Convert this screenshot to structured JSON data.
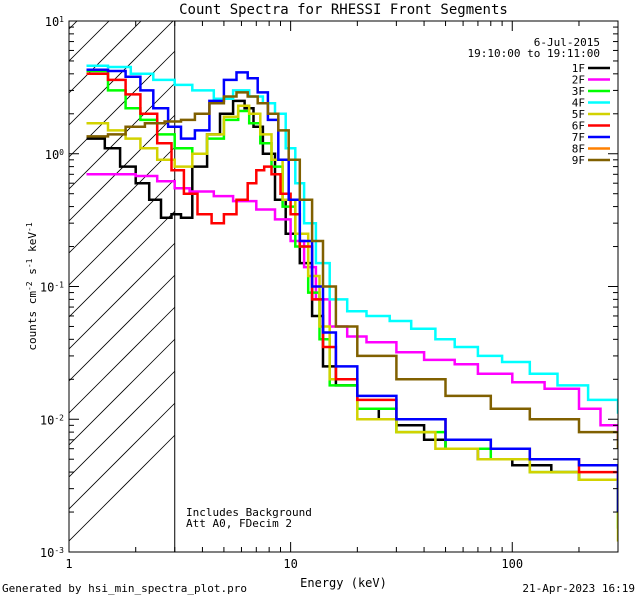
{
  "chart_data": {
    "type": "line",
    "title": "Count Spectra for RHESSI Front Segments",
    "xlabel": "Energy (keV)",
    "ylabel": "counts cm",
    "ylabel_units": {
      "cm_exp": "-2",
      "s": " s",
      "s_exp": "-1",
      "kev": " keV",
      "kev_exp": "-1"
    },
    "xscale": "log",
    "yscale": "log",
    "xlim": [
      1,
      300
    ],
    "ylim": [
      0.001,
      10
    ],
    "x_ticks": [
      {
        "v": 1,
        "label": "1"
      },
      {
        "v": 10,
        "label": "10"
      },
      {
        "v": 100,
        "label": "100"
      }
    ],
    "y_ticks": [
      {
        "v": 10,
        "base": "10",
        "exp": "1"
      },
      {
        "v": 1,
        "base": "10",
        "exp": "0"
      },
      {
        "v": 0.1,
        "base": "10",
        "exp": "-1"
      },
      {
        "v": 0.01,
        "base": "10",
        "exp": "-2"
      },
      {
        "v": 0.001,
        "base": "10",
        "exp": "-3"
      }
    ],
    "date": "6-Jul-2015",
    "time_range": "19:10:00 to 19:11:00",
    "annotations": [
      "Includes Background",
      "Att A0, FDecim 2"
    ],
    "shaded_below_kev": 3,
    "legend_position": "top-right",
    "series": [
      {
        "name": "1F",
        "color": "#000000",
        "points": [
          [
            1.2,
            1.3
          ],
          [
            1.45,
            1.1
          ],
          [
            1.7,
            0.8
          ],
          [
            2.0,
            0.6
          ],
          [
            2.3,
            0.45
          ],
          [
            2.6,
            0.33
          ],
          [
            2.9,
            0.35
          ],
          [
            3.2,
            0.33
          ],
          [
            3.6,
            0.8
          ],
          [
            4.2,
            1.4
          ],
          [
            4.8,
            2.0
          ],
          [
            5.5,
            2.5
          ],
          [
            6.2,
            2.2
          ],
          [
            6.8,
            1.6
          ],
          [
            7.5,
            1.0
          ],
          [
            8.5,
            0.45
          ],
          [
            9.5,
            0.25
          ],
          [
            11,
            0.15
          ],
          [
            12.5,
            0.06
          ],
          [
            14,
            0.025
          ],
          [
            16,
            0.018
          ],
          [
            20,
            0.012
          ],
          [
            25,
            0.01
          ],
          [
            30,
            0.009
          ],
          [
            40,
            0.007
          ],
          [
            50,
            0.006
          ],
          [
            70,
            0.005
          ],
          [
            100,
            0.0045
          ],
          [
            150,
            0.004
          ],
          [
            200,
            0.0035
          ],
          [
            250,
            0.0035
          ],
          [
            300,
            0.002
          ]
        ]
      },
      {
        "name": "2F",
        "color": "#ff00ff",
        "points": [
          [
            1.2,
            0.7
          ],
          [
            1.6,
            0.7
          ],
          [
            2.0,
            0.68
          ],
          [
            2.5,
            0.62
          ],
          [
            3.0,
            0.55
          ],
          [
            3.5,
            0.52
          ],
          [
            4.5,
            0.48
          ],
          [
            5.5,
            0.44
          ],
          [
            7,
            0.38
          ],
          [
            8.5,
            0.32
          ],
          [
            10,
            0.22
          ],
          [
            11.5,
            0.14
          ],
          [
            13,
            0.08
          ],
          [
            15,
            0.05
          ],
          [
            18,
            0.042
          ],
          [
            22,
            0.038
          ],
          [
            30,
            0.032
          ],
          [
            40,
            0.028
          ],
          [
            55,
            0.026
          ],
          [
            70,
            0.022
          ],
          [
            100,
            0.019
          ],
          [
            140,
            0.017
          ],
          [
            200,
            0.012
          ],
          [
            250,
            0.009
          ],
          [
            300,
            0.007
          ]
        ]
      },
      {
        "name": "3F",
        "color": "#00ff00",
        "points": [
          [
            1.2,
            4.2
          ],
          [
            1.5,
            3.0
          ],
          [
            1.8,
            2.2
          ],
          [
            2.1,
            1.8
          ],
          [
            2.5,
            1.4
          ],
          [
            3.0,
            1.1
          ],
          [
            3.6,
            1.0
          ],
          [
            4.2,
            1.3
          ],
          [
            5.0,
            1.8
          ],
          [
            5.8,
            2.1
          ],
          [
            6.5,
            1.7
          ],
          [
            7.3,
            1.2
          ],
          [
            8.2,
            0.8
          ],
          [
            9.2,
            0.4
          ],
          [
            10.5,
            0.2
          ],
          [
            12,
            0.09
          ],
          [
            13.5,
            0.04
          ],
          [
            15,
            0.018
          ],
          [
            20,
            0.012
          ],
          [
            30,
            0.008
          ],
          [
            50,
            0.006
          ],
          [
            80,
            0.005
          ],
          [
            120,
            0.004
          ],
          [
            200,
            0.0035
          ],
          [
            300,
            0.0015
          ]
        ]
      },
      {
        "name": "4F",
        "color": "#00ffff",
        "points": [
          [
            1.2,
            4.6
          ],
          [
            1.5,
            4.5
          ],
          [
            1.9,
            4.0
          ],
          [
            2.4,
            3.6
          ],
          [
            3.0,
            3.3
          ],
          [
            3.6,
            3.0
          ],
          [
            4.5,
            2.6
          ],
          [
            5.5,
            3.0
          ],
          [
            6.5,
            2.7
          ],
          [
            7.5,
            2.4
          ],
          [
            8.5,
            2.0
          ],
          [
            9.5,
            1.1
          ],
          [
            10.5,
            0.6
          ],
          [
            11.5,
            0.3
          ],
          [
            13,
            0.15
          ],
          [
            15,
            0.08
          ],
          [
            18,
            0.065
          ],
          [
            22,
            0.06
          ],
          [
            28,
            0.055
          ],
          [
            35,
            0.048
          ],
          [
            45,
            0.04
          ],
          [
            55,
            0.035
          ],
          [
            70,
            0.03
          ],
          [
            90,
            0.027
          ],
          [
            120,
            0.022
          ],
          [
            160,
            0.018
          ],
          [
            220,
            0.014
          ],
          [
            300,
            0.011
          ]
        ]
      },
      {
        "name": "5F",
        "color": "#d2d200",
        "points": [
          [
            1.2,
            1.7
          ],
          [
            1.5,
            1.5
          ],
          [
            1.8,
            1.3
          ],
          [
            2.1,
            1.1
          ],
          [
            2.5,
            0.9
          ],
          [
            3.0,
            0.8
          ],
          [
            3.6,
            1.0
          ],
          [
            4.2,
            1.4
          ],
          [
            5.0,
            1.9
          ],
          [
            5.8,
            2.3
          ],
          [
            6.5,
            2.0
          ],
          [
            7.3,
            1.4
          ],
          [
            8.2,
            0.9
          ],
          [
            9.2,
            0.45
          ],
          [
            10.5,
            0.25
          ],
          [
            12,
            0.12
          ],
          [
            13.5,
            0.05
          ],
          [
            15,
            0.02
          ],
          [
            20,
            0.01
          ],
          [
            30,
            0.008
          ],
          [
            45,
            0.006
          ],
          [
            70,
            0.005
          ],
          [
            120,
            0.004
          ],
          [
            200,
            0.0035
          ],
          [
            300,
            0.0012
          ]
        ]
      },
      {
        "name": "6F",
        "color": "#ff0000",
        "points": [
          [
            1.2,
            4.0
          ],
          [
            1.5,
            3.6
          ],
          [
            1.8,
            2.8
          ],
          [
            2.1,
            2.0
          ],
          [
            2.5,
            1.2
          ],
          [
            2.9,
            0.75
          ],
          [
            3.3,
            0.5
          ],
          [
            3.8,
            0.35
          ],
          [
            4.4,
            0.3
          ],
          [
            5.0,
            0.35
          ],
          [
            5.7,
            0.45
          ],
          [
            6.4,
            0.6
          ],
          [
            7.0,
            0.75
          ],
          [
            7.6,
            0.8
          ],
          [
            8.2,
            0.7
          ],
          [
            9.0,
            0.5
          ],
          [
            10,
            0.35
          ],
          [
            11,
            0.2
          ],
          [
            12.5,
            0.08
          ],
          [
            14,
            0.035
          ],
          [
            16,
            0.02
          ],
          [
            20,
            0.014
          ],
          [
            30,
            0.01
          ],
          [
            50,
            0.007
          ],
          [
            80,
            0.006
          ],
          [
            120,
            0.005
          ],
          [
            200,
            0.004
          ],
          [
            300,
            0.0035
          ]
        ]
      },
      {
        "name": "7F",
        "color": "#0000ff",
        "points": [
          [
            1.2,
            4.3
          ],
          [
            1.5,
            4.2
          ],
          [
            1.8,
            3.8
          ],
          [
            2.1,
            3.0
          ],
          [
            2.4,
            2.2
          ],
          [
            2.8,
            1.6
          ],
          [
            3.2,
            1.3
          ],
          [
            3.7,
            1.5
          ],
          [
            4.3,
            2.5
          ],
          [
            5.0,
            3.6
          ],
          [
            5.7,
            4.1
          ],
          [
            6.4,
            3.7
          ],
          [
            7.1,
            2.9
          ],
          [
            7.9,
            1.8
          ],
          [
            8.8,
            0.9
          ],
          [
            9.8,
            0.45
          ],
          [
            11,
            0.22
          ],
          [
            12.5,
            0.1
          ],
          [
            14,
            0.045
          ],
          [
            16,
            0.025
          ],
          [
            20,
            0.015
          ],
          [
            30,
            0.01
          ],
          [
            50,
            0.007
          ],
          [
            80,
            0.006
          ],
          [
            120,
            0.005
          ],
          [
            200,
            0.0045
          ],
          [
            300,
            0.002
          ]
        ]
      },
      {
        "name": "8F",
        "color": "#ff8000",
        "points": []
      },
      {
        "name": "9F",
        "color": "#806000",
        "points": [
          [
            1.2,
            1.35
          ],
          [
            1.5,
            1.4
          ],
          [
            1.8,
            1.6
          ],
          [
            2.2,
            1.7
          ],
          [
            2.7,
            1.75
          ],
          [
            3.2,
            1.8
          ],
          [
            3.7,
            2.0
          ],
          [
            4.3,
            2.4
          ],
          [
            5.0,
            2.7
          ],
          [
            5.7,
            2.9
          ],
          [
            6.4,
            2.7
          ],
          [
            7.1,
            2.4
          ],
          [
            7.9,
            2.0
          ],
          [
            8.8,
            1.5
          ],
          [
            9.8,
            0.9
          ],
          [
            11,
            0.45
          ],
          [
            12.5,
            0.22
          ],
          [
            14,
            0.1
          ],
          [
            16,
            0.05
          ],
          [
            20,
            0.03
          ],
          [
            30,
            0.02
          ],
          [
            50,
            0.015
          ],
          [
            80,
            0.012
          ],
          [
            120,
            0.01
          ],
          [
            200,
            0.008
          ],
          [
            300,
            0.006
          ]
        ]
      }
    ]
  },
  "footer": {
    "generated_by": "Generated by hsi_min_spectra_plot.pro",
    "date": "21-Apr-2023 16:19"
  }
}
